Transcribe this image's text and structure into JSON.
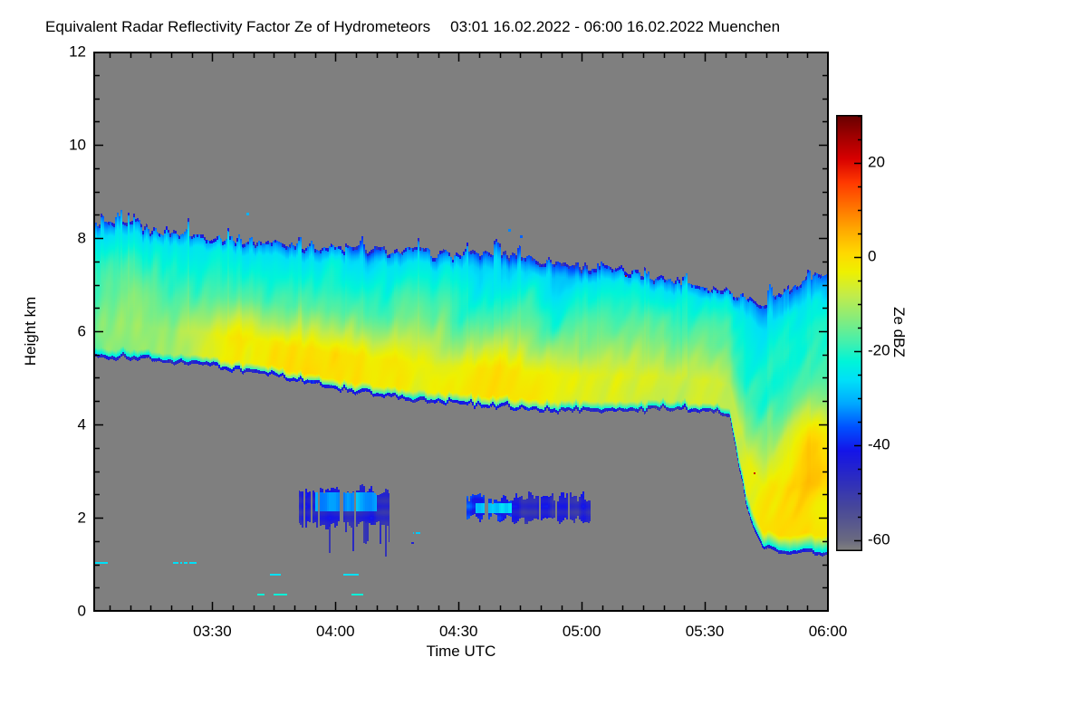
{
  "header": {
    "title": "Equivalent Radar Reflectivity Factor Ze of Hydrometeors",
    "period": "03:01 16.02.2022 - 06:00 16.02.2022 Muenchen"
  },
  "chart_data": {
    "type": "heatmap",
    "title": "Equivalent Radar Reflectivity Factor Ze of Hydrometeors",
    "period": "03:01 16.02.2022 - 06:00 16.02.2022 Muenchen",
    "station": "Muenchen",
    "xlabel": "Time UTC",
    "ylabel": "Height km",
    "x_range": [
      "03:01",
      "06:00"
    ],
    "x_ticks": [
      "03:30",
      "04:00",
      "04:30",
      "05:00",
      "05:30",
      "06:00"
    ],
    "x_minor_step_min": 5,
    "y_range": [
      0,
      12
    ],
    "y_ticks": [
      0,
      2,
      4,
      6,
      8,
      10,
      12
    ],
    "y_minor_step": 0.5,
    "grid": false,
    "nodata_color": "#7f7f7f",
    "colorbar": {
      "label": "Ze dBZ",
      "ticks": [
        20,
        0,
        -20,
        -40,
        -60
      ],
      "minor_step": 5,
      "range": [
        -62,
        30
      ],
      "position": "right"
    },
    "colormap_stops": [
      {
        "v": -62,
        "c": "#7f7f7f"
      },
      {
        "v": -60,
        "c": "#6a6a80"
      },
      {
        "v": -53,
        "c": "#47479a"
      },
      {
        "v": -47,
        "c": "#2c2cc0"
      },
      {
        "v": -41,
        "c": "#1414e8"
      },
      {
        "v": -36,
        "c": "#0050ff"
      },
      {
        "v": -31,
        "c": "#00a8ff"
      },
      {
        "v": -26,
        "c": "#00e0f8"
      },
      {
        "v": -22,
        "c": "#00f4d8"
      },
      {
        "v": -18,
        "c": "#42f0ae"
      },
      {
        "v": -13,
        "c": "#86ec7c"
      },
      {
        "v": -8,
        "c": "#c2ec4a"
      },
      {
        "v": -3,
        "c": "#eef000"
      },
      {
        "v": 1,
        "c": "#ffd800"
      },
      {
        "v": 6,
        "c": "#ffa800"
      },
      {
        "v": 11,
        "c": "#ff7000"
      },
      {
        "v": 16,
        "c": "#ff3800"
      },
      {
        "v": 21,
        "c": "#d70000"
      },
      {
        "v": 26,
        "c": "#9c0000"
      },
      {
        "v": 30,
        "c": "#690000"
      }
    ],
    "band_profile": {
      "comment_units": "t = minutes after 03:00 UTC, heights in km, core in dBZ",
      "t": [
        1,
        10,
        20,
        30,
        40,
        50,
        60,
        70,
        80,
        90,
        100,
        110,
        120,
        130,
        140,
        146,
        152,
        156,
        158,
        161,
        164,
        170,
        175,
        180
      ],
      "cloud_top_km": [
        8.35,
        8.25,
        8.15,
        8.05,
        7.95,
        7.88,
        7.8,
        7.76,
        7.72,
        7.64,
        7.72,
        7.55,
        7.42,
        7.3,
        7.15,
        7.05,
        6.95,
        6.88,
        6.82,
        6.72,
        6.62,
        6.85,
        7.1,
        7.35
      ],
      "cloud_base_km": [
        5.45,
        5.42,
        5.35,
        5.25,
        5.1,
        4.95,
        4.75,
        4.62,
        4.5,
        4.45,
        4.38,
        4.3,
        4.28,
        4.25,
        4.33,
        4.3,
        4.25,
        4.15,
        3.2,
        1.9,
        1.35,
        1.2,
        1.25,
        1.2
      ],
      "core_dbz": [
        -15,
        -12,
        -9,
        -6,
        -4,
        -3,
        -3,
        -4,
        -5,
        -5,
        -4,
        -5,
        -5,
        -6,
        -6,
        -6,
        -5,
        -5,
        -4,
        -3,
        -2,
        -1,
        -1,
        -2
      ]
    },
    "hotspots": [
      {
        "t": 177,
        "h": 3.75,
        "st": 5.0,
        "sh": 0.6,
        "amp": 10.0
      },
      {
        "t": 57,
        "h": 5.3,
        "st": 11.0,
        "sh": 0.8,
        "amp": 3.0
      },
      {
        "t": 36,
        "h": 5.6,
        "st": 8.0,
        "sh": 0.6,
        "amp": 2.5
      },
      {
        "t": 100,
        "h": 4.9,
        "st": 9.0,
        "sh": 0.7,
        "amp": 2.5
      }
    ],
    "low_level_patches": [
      {
        "t0": 51,
        "t1": 73,
        "h0": 1.85,
        "h1": 2.6,
        "value": -45,
        "core": {
          "t0": 55,
          "t1": 70,
          "h0": 2.15,
          "h1": 2.55,
          "value": -31
        },
        "streaks_below": true
      },
      {
        "t0": 92,
        "t1": 103,
        "h0": 2.0,
        "h1": 2.4,
        "value": -40,
        "core": {
          "t0": 94,
          "t1": 103,
          "h0": 2.1,
          "h1": 2.32,
          "value": -27
        },
        "streaks_below": false
      },
      {
        "t0": 103,
        "t1": 122,
        "h0": 1.95,
        "h1": 2.45,
        "value": -46,
        "core": null,
        "streaks_below": false
      }
    ],
    "specks": [
      {
        "t0": 1,
        "t1": 5,
        "h": 1.05,
        "value": -26
      },
      {
        "t0": 20.5,
        "t1": 26,
        "h": 1.05,
        "value": -26
      },
      {
        "t0": 44,
        "t1": 46.5,
        "h": 0.8,
        "value": -26
      },
      {
        "t0": 62,
        "t1": 65.5,
        "h": 0.8,
        "value": -26
      },
      {
        "t0": 41,
        "t1": 42.5,
        "h": 0.37,
        "value": -22
      },
      {
        "t0": 45,
        "t1": 48,
        "h": 0.37,
        "value": -22
      },
      {
        "t0": 64,
        "t1": 66.5,
        "h": 0.37,
        "value": -22
      },
      {
        "t0": 79,
        "t1": 80.5,
        "h": 1.68,
        "value": -28
      },
      {
        "t0": 78.5,
        "t1": 79.2,
        "h": 1.47,
        "value": -44
      }
    ],
    "noise_dots": [
      {
        "t": 38.2,
        "h": 8.55,
        "value": -30,
        "size": 3
      },
      {
        "t": 102,
        "h": 8.2,
        "value": -33,
        "size": 3
      },
      {
        "t": 105,
        "h": 8.05,
        "value": -35,
        "size": 3
      },
      {
        "t": 130.5,
        "h": 7.2,
        "value": 24,
        "size": 2
      },
      {
        "t": 162,
        "h": 2.97,
        "value": 22,
        "size": 2
      }
    ]
  }
}
